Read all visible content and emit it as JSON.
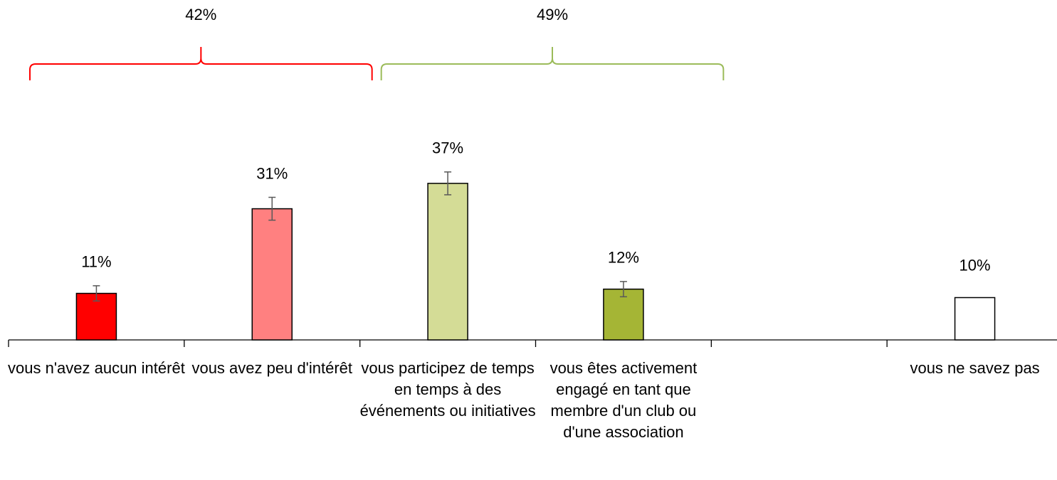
{
  "chart_data": {
    "type": "bar",
    "categories": [
      "vous n'avez aucun intérêt",
      "vous avez peu d'intérêt",
      "vous participez de temps en temps à des événements ou initiatives",
      "vous êtes activement engagé en tant que membre d'un club ou d'une association",
      null,
      "vous ne savez pas"
    ],
    "values": [
      11,
      31,
      37,
      12,
      null,
      10
    ],
    "value_labels": [
      "11%",
      "31%",
      "37%",
      "12%",
      null,
      "10%"
    ],
    "errors": [
      1.8,
      2.7,
      2.7,
      1.8,
      null,
      null
    ],
    "colors": [
      "#ff0000",
      "#ff8080",
      "#d4dc96",
      "#a5b535",
      null,
      "#ffffff"
    ],
    "ylim": [
      0,
      80
    ],
    "groups": [
      {
        "label": "42%",
        "value": 42,
        "from": 0,
        "to": 1,
        "color": "#ff0000"
      },
      {
        "label": "49%",
        "value": 49,
        "from": 2,
        "to": 3,
        "color": "#9bbb59"
      }
    ]
  }
}
